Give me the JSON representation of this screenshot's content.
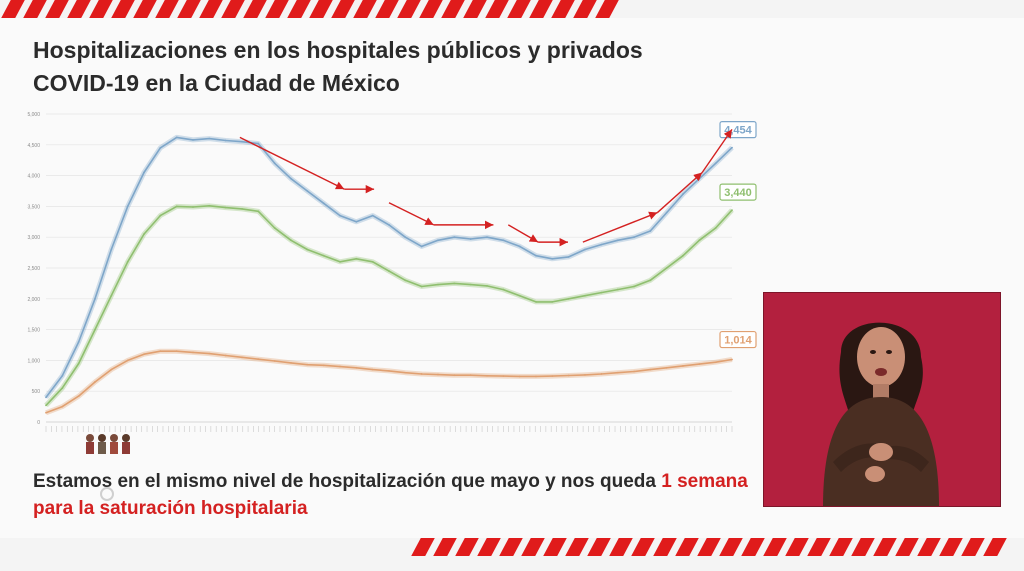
{
  "title": {
    "line1": "Hospitalizaciones en los hospitales públicos y privados",
    "line2": "COVID-19 en la Ciudad de México"
  },
  "caption": {
    "part1": "Estamos en el mismo nivel de hospitalización que mayo y nos queda ",
    "highlight": "1 semana para la saturación hospitalaria"
  },
  "colors": {
    "stripe": "#e01b1b",
    "series_total": "#7ea6c9",
    "series_green": "#8fbf6f",
    "series_orange": "#e0a071",
    "arrow": "#d42121",
    "highlight_text": "#d42121",
    "video_bg": "#b3203e"
  },
  "chart_data": {
    "type": "line",
    "ylim": [
      0,
      5000
    ],
    "y_ticks": [
      "0",
      "500",
      "1,000",
      "1,500",
      "2,000",
      "2,500",
      "3,000",
      "3,500",
      "4,000",
      "4,500",
      "5,000"
    ],
    "grid": true,
    "series": [
      {
        "name": "",
        "color": "#7ea6c9",
        "values": [
          400,
          750,
          1300,
          2000,
          2800,
          3500,
          4050,
          4450,
          4620,
          4580,
          4600,
          4570,
          4550,
          4520,
          4200,
          3950,
          3750,
          3550,
          3350,
          3250,
          3350,
          3200,
          3000,
          2850,
          2950,
          3000,
          2970,
          3000,
          2950,
          2850,
          2700,
          2650,
          2680,
          2800,
          2880,
          2950,
          3000,
          3100,
          3400,
          3700,
          3950,
          4200,
          4454
        ],
        "end_label": "4,454"
      },
      {
        "name": "",
        "color": "#8fbf6f",
        "values": [
          270,
          550,
          950,
          1500,
          2050,
          2600,
          3050,
          3350,
          3500,
          3490,
          3510,
          3480,
          3460,
          3420,
          3150,
          2950,
          2800,
          2700,
          2600,
          2650,
          2600,
          2450,
          2300,
          2200,
          2230,
          2250,
          2230,
          2210,
          2150,
          2050,
          1950,
          1950,
          2000,
          2050,
          2100,
          2150,
          2200,
          2300,
          2500,
          2700,
          2950,
          3150,
          3440
        ],
        "end_label": "3,440"
      },
      {
        "name": "",
        "color": "#e0a071",
        "values": [
          150,
          250,
          420,
          650,
          850,
          1000,
          1100,
          1150,
          1150,
          1130,
          1110,
          1080,
          1050,
          1020,
          990,
          960,
          930,
          920,
          900,
          880,
          850,
          830,
          800,
          780,
          770,
          760,
          760,
          750,
          745,
          740,
          740,
          745,
          755,
          765,
          780,
          800,
          820,
          850,
          880,
          910,
          940,
          970,
          1014
        ],
        "end_label": "1,014"
      }
    ],
    "trend_arrows": [
      [
        [
          13,
          4620
        ],
        [
          20,
          3780
        ]
      ],
      [
        [
          20,
          3780
        ],
        [
          22,
          3780
        ]
      ],
      [
        [
          23,
          3560
        ],
        [
          26,
          3200
        ]
      ],
      [
        [
          26,
          3200
        ],
        [
          30,
          3200
        ]
      ],
      [
        [
          31,
          3200
        ],
        [
          33,
          2920
        ]
      ],
      [
        [
          33,
          2920
        ],
        [
          35,
          2920
        ]
      ],
      [
        [
          36,
          2920
        ],
        [
          41,
          3400
        ]
      ],
      [
        [
          41,
          3400
        ],
        [
          44,
          4050
        ]
      ],
      [
        [
          44,
          4050
        ],
        [
          46,
          4750
        ]
      ]
    ]
  }
}
